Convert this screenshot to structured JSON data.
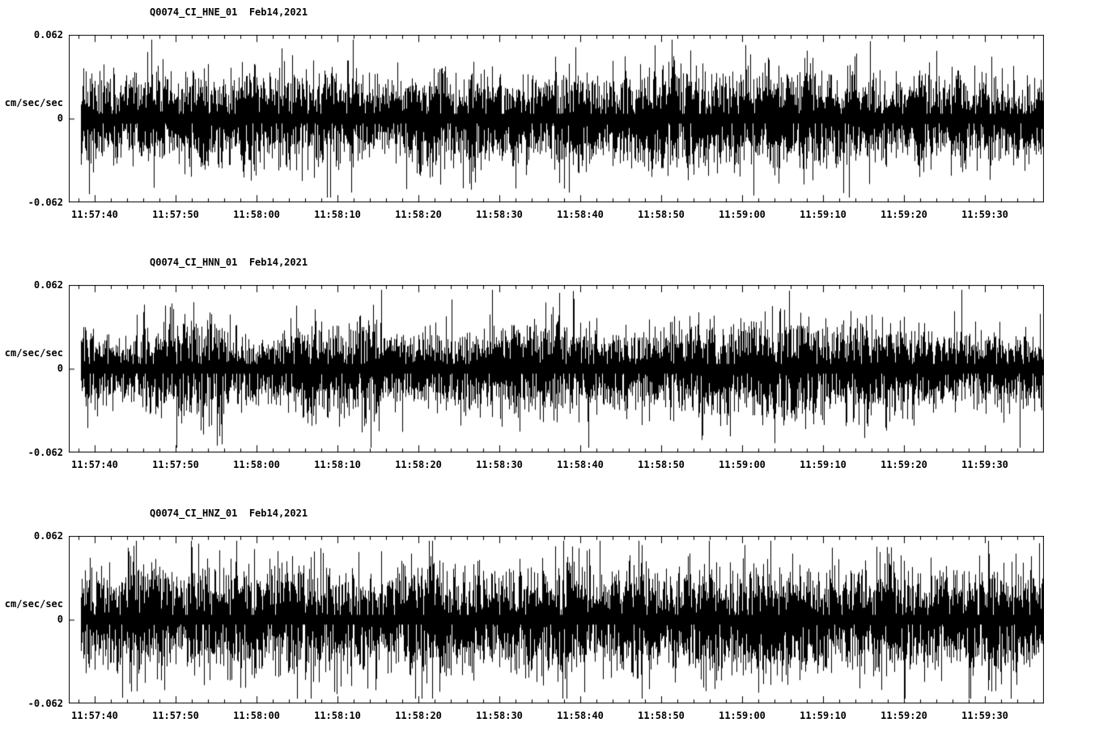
{
  "page": {
    "background": "#ffffff",
    "trace_color": "#000000",
    "axis_color": "#000000"
  },
  "chart_data": [
    {
      "type": "line",
      "title": "Q0074_CI_HNE_01  Feb14,2021",
      "station": "Q0074_CI_HNE_01",
      "date": "Feb14,2021",
      "ylabel": "cm/sec/sec",
      "ylim": [
        -0.062,
        0.062
      ],
      "ytick_labels": [
        "0.062",
        "0",
        "-0.062"
      ],
      "xtick_labels": [
        "11:57:40",
        "11:57:50",
        "11:58:00",
        "11:58:10",
        "11:58:20",
        "11:58:30",
        "11:58:40",
        "11:58:50",
        "11:59:00",
        "11:59:10",
        "11:59:20",
        "11:59:30"
      ],
      "x_start": "11:57:37",
      "x_end": "11:59:37",
      "x_major_tick_sec": 10,
      "x_minor_tick_sec": 2,
      "grid": false,
      "legend": false,
      "series": [
        {
          "name": "HNE",
          "kind": "seismic-noise-waveform",
          "units": "cm/sec/sec",
          "noise_sigma": 0.0155,
          "typical_envelope": 0.03,
          "max_peak": 0.057,
          "mean": 0,
          "seed": 11
        }
      ]
    },
    {
      "type": "line",
      "title": "Q0074_CI_HNN_01  Feb14,2021",
      "station": "Q0074_CI_HNN_01",
      "date": "Feb14,2021",
      "ylabel": "cm/sec/sec",
      "ylim": [
        -0.062,
        0.062
      ],
      "ytick_labels": [
        "0.062",
        "0",
        "-0.062"
      ],
      "xtick_labels": [
        "11:57:40",
        "11:57:50",
        "11:58:00",
        "11:58:10",
        "11:58:20",
        "11:58:30",
        "11:58:40",
        "11:58:50",
        "11:59:00",
        "11:59:10",
        "11:59:20",
        "11:59:30"
      ],
      "x_start": "11:57:37",
      "x_end": "11:59:37",
      "x_major_tick_sec": 10,
      "x_minor_tick_sec": 2,
      "grid": false,
      "legend": false,
      "series": [
        {
          "name": "HNN",
          "kind": "seismic-noise-waveform",
          "units": "cm/sec/sec",
          "noise_sigma": 0.015,
          "typical_envelope": 0.03,
          "max_peak": 0.058,
          "mean": 0,
          "seed": 22
        }
      ]
    },
    {
      "type": "line",
      "title": "Q0074_CI_HNZ_01  Feb14,2021",
      "station": "Q0074_CI_HNZ_01",
      "date": "Feb14,2021",
      "ylabel": "cm/sec/sec",
      "ylim": [
        -0.062,
        0.062
      ],
      "ytick_labels": [
        "0.062",
        "0",
        "-0.062"
      ],
      "xtick_labels": [
        "11:57:40",
        "11:57:50",
        "11:58:00",
        "11:58:10",
        "11:58:20",
        "11:58:30",
        "11:58:40",
        "11:58:50",
        "11:59:00",
        "11:59:10",
        "11:59:20",
        "11:59:30"
      ],
      "x_start": "11:57:37",
      "x_end": "11:59:37",
      "x_major_tick_sec": 10,
      "x_minor_tick_sec": 2,
      "grid": false,
      "legend": false,
      "series": [
        {
          "name": "HNZ",
          "kind": "seismic-noise-waveform",
          "units": "cm/sec/sec",
          "noise_sigma": 0.017,
          "typical_envelope": 0.033,
          "max_peak": 0.06,
          "mean": 0,
          "seed": 33
        }
      ]
    }
  ]
}
